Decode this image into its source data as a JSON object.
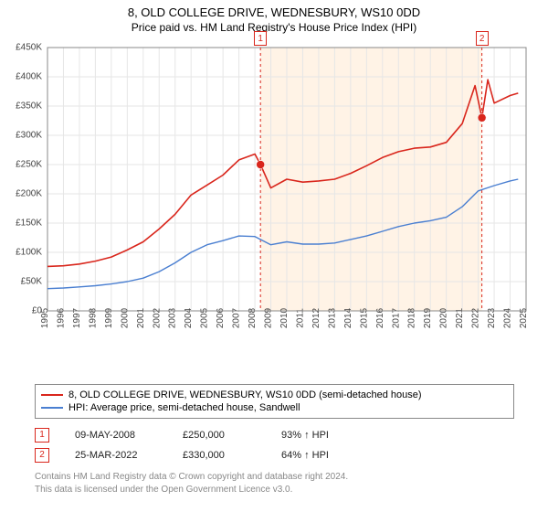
{
  "title": {
    "line1": "8, OLD COLLEGE DRIVE, WEDNESBURY, WS10 0DD",
    "line2": "Price paid vs. HM Land Registry's House Price Index (HPI)"
  },
  "chart": {
    "type": "line",
    "background_color": "#ffffff",
    "shaded_region_color": "#fff3e6",
    "grid_color": "#e6e6e6",
    "axis_color": "#888888",
    "x": {
      "min": 1995,
      "max": 2025,
      "tick_step": 1,
      "ticks": [
        1995,
        1996,
        1997,
        1998,
        1999,
        2000,
        2001,
        2002,
        2003,
        2004,
        2005,
        2006,
        2007,
        2008,
        2009,
        2010,
        2011,
        2012,
        2013,
        2014,
        2015,
        2016,
        2017,
        2018,
        2019,
        2020,
        2021,
        2022,
        2023,
        2024,
        2025
      ]
    },
    "y": {
      "min": 0,
      "max": 450000,
      "tick_step": 50000,
      "tick_labels": [
        "£0",
        "£50K",
        "£100K",
        "£150K",
        "£200K",
        "£250K",
        "£300K",
        "£350K",
        "£400K",
        "£450K"
      ],
      "tick_values": [
        0,
        50000,
        100000,
        150000,
        200000,
        250000,
        300000,
        350000,
        400000,
        450000
      ]
    },
    "shaded_region": {
      "x_start": 2008.35,
      "x_end": 2022.23
    },
    "marker_lines": [
      {
        "id": "1",
        "x": 2008.35,
        "color": "#d9261c",
        "dash": "3,3"
      },
      {
        "id": "2",
        "x": 2022.23,
        "color": "#d9261c",
        "dash": "3,3"
      }
    ],
    "marker_points": [
      {
        "id": "1",
        "x": 2008.35,
        "y": 250000,
        "color": "#d9261c"
      },
      {
        "id": "2",
        "x": 2022.23,
        "y": 330000,
        "color": "#d9261c"
      }
    ],
    "series": [
      {
        "name": "property",
        "color": "#d9261c",
        "line_width": 1.6,
        "data": [
          [
            1995,
            76000
          ],
          [
            1996,
            77000
          ],
          [
            1997,
            80000
          ],
          [
            1998,
            85000
          ],
          [
            1999,
            92000
          ],
          [
            2000,
            104000
          ],
          [
            2001,
            118000
          ],
          [
            2002,
            140000
          ],
          [
            2003,
            165000
          ],
          [
            2004,
            198000
          ],
          [
            2005,
            215000
          ],
          [
            2006,
            232000
          ],
          [
            2007,
            258000
          ],
          [
            2008,
            268000
          ],
          [
            2008.35,
            250000
          ],
          [
            2009,
            210000
          ],
          [
            2010,
            225000
          ],
          [
            2011,
            220000
          ],
          [
            2012,
            222000
          ],
          [
            2013,
            225000
          ],
          [
            2014,
            235000
          ],
          [
            2015,
            248000
          ],
          [
            2016,
            262000
          ],
          [
            2017,
            272000
          ],
          [
            2018,
            278000
          ],
          [
            2019,
            280000
          ],
          [
            2020,
            288000
          ],
          [
            2021,
            320000
          ],
          [
            2021.8,
            385000
          ],
          [
            2022.23,
            330000
          ],
          [
            2022.6,
            395000
          ],
          [
            2023,
            355000
          ],
          [
            2024,
            368000
          ],
          [
            2024.5,
            372000
          ]
        ]
      },
      {
        "name": "hpi",
        "color": "#4a7fd1",
        "line_width": 1.4,
        "data": [
          [
            1995,
            38000
          ],
          [
            1996,
            39000
          ],
          [
            1997,
            41000
          ],
          [
            1998,
            43000
          ],
          [
            1999,
            46000
          ],
          [
            2000,
            50000
          ],
          [
            2001,
            56000
          ],
          [
            2002,
            67000
          ],
          [
            2003,
            82000
          ],
          [
            2004,
            100000
          ],
          [
            2005,
            113000
          ],
          [
            2006,
            120000
          ],
          [
            2007,
            128000
          ],
          [
            2008,
            127000
          ],
          [
            2009,
            113000
          ],
          [
            2010,
            118000
          ],
          [
            2011,
            114000
          ],
          [
            2012,
            114000
          ],
          [
            2013,
            116000
          ],
          [
            2014,
            122000
          ],
          [
            2015,
            128000
          ],
          [
            2016,
            136000
          ],
          [
            2017,
            144000
          ],
          [
            2018,
            150000
          ],
          [
            2019,
            154000
          ],
          [
            2020,
            160000
          ],
          [
            2021,
            178000
          ],
          [
            2022,
            205000
          ],
          [
            2023,
            214000
          ],
          [
            2024,
            222000
          ],
          [
            2024.5,
            225000
          ]
        ]
      }
    ]
  },
  "legend": {
    "items": [
      {
        "color": "#d9261c",
        "label": "8, OLD COLLEGE DRIVE, WEDNESBURY, WS10 0DD (semi-detached house)"
      },
      {
        "color": "#4a7fd1",
        "label": "HPI: Average price, semi-detached house, Sandwell"
      }
    ]
  },
  "markers_table": {
    "rows": [
      {
        "id": "1",
        "color": "#d9261c",
        "date": "09-MAY-2008",
        "price": "£250,000",
        "pct": "93% ↑ HPI"
      },
      {
        "id": "2",
        "color": "#d9261c",
        "date": "25-MAR-2022",
        "price": "£330,000",
        "pct": "64% ↑ HPI"
      }
    ]
  },
  "footer": {
    "line1": "Contains HM Land Registry data © Crown copyright and database right 2024.",
    "line2": "This data is licensed under the Open Government Licence v3.0."
  }
}
